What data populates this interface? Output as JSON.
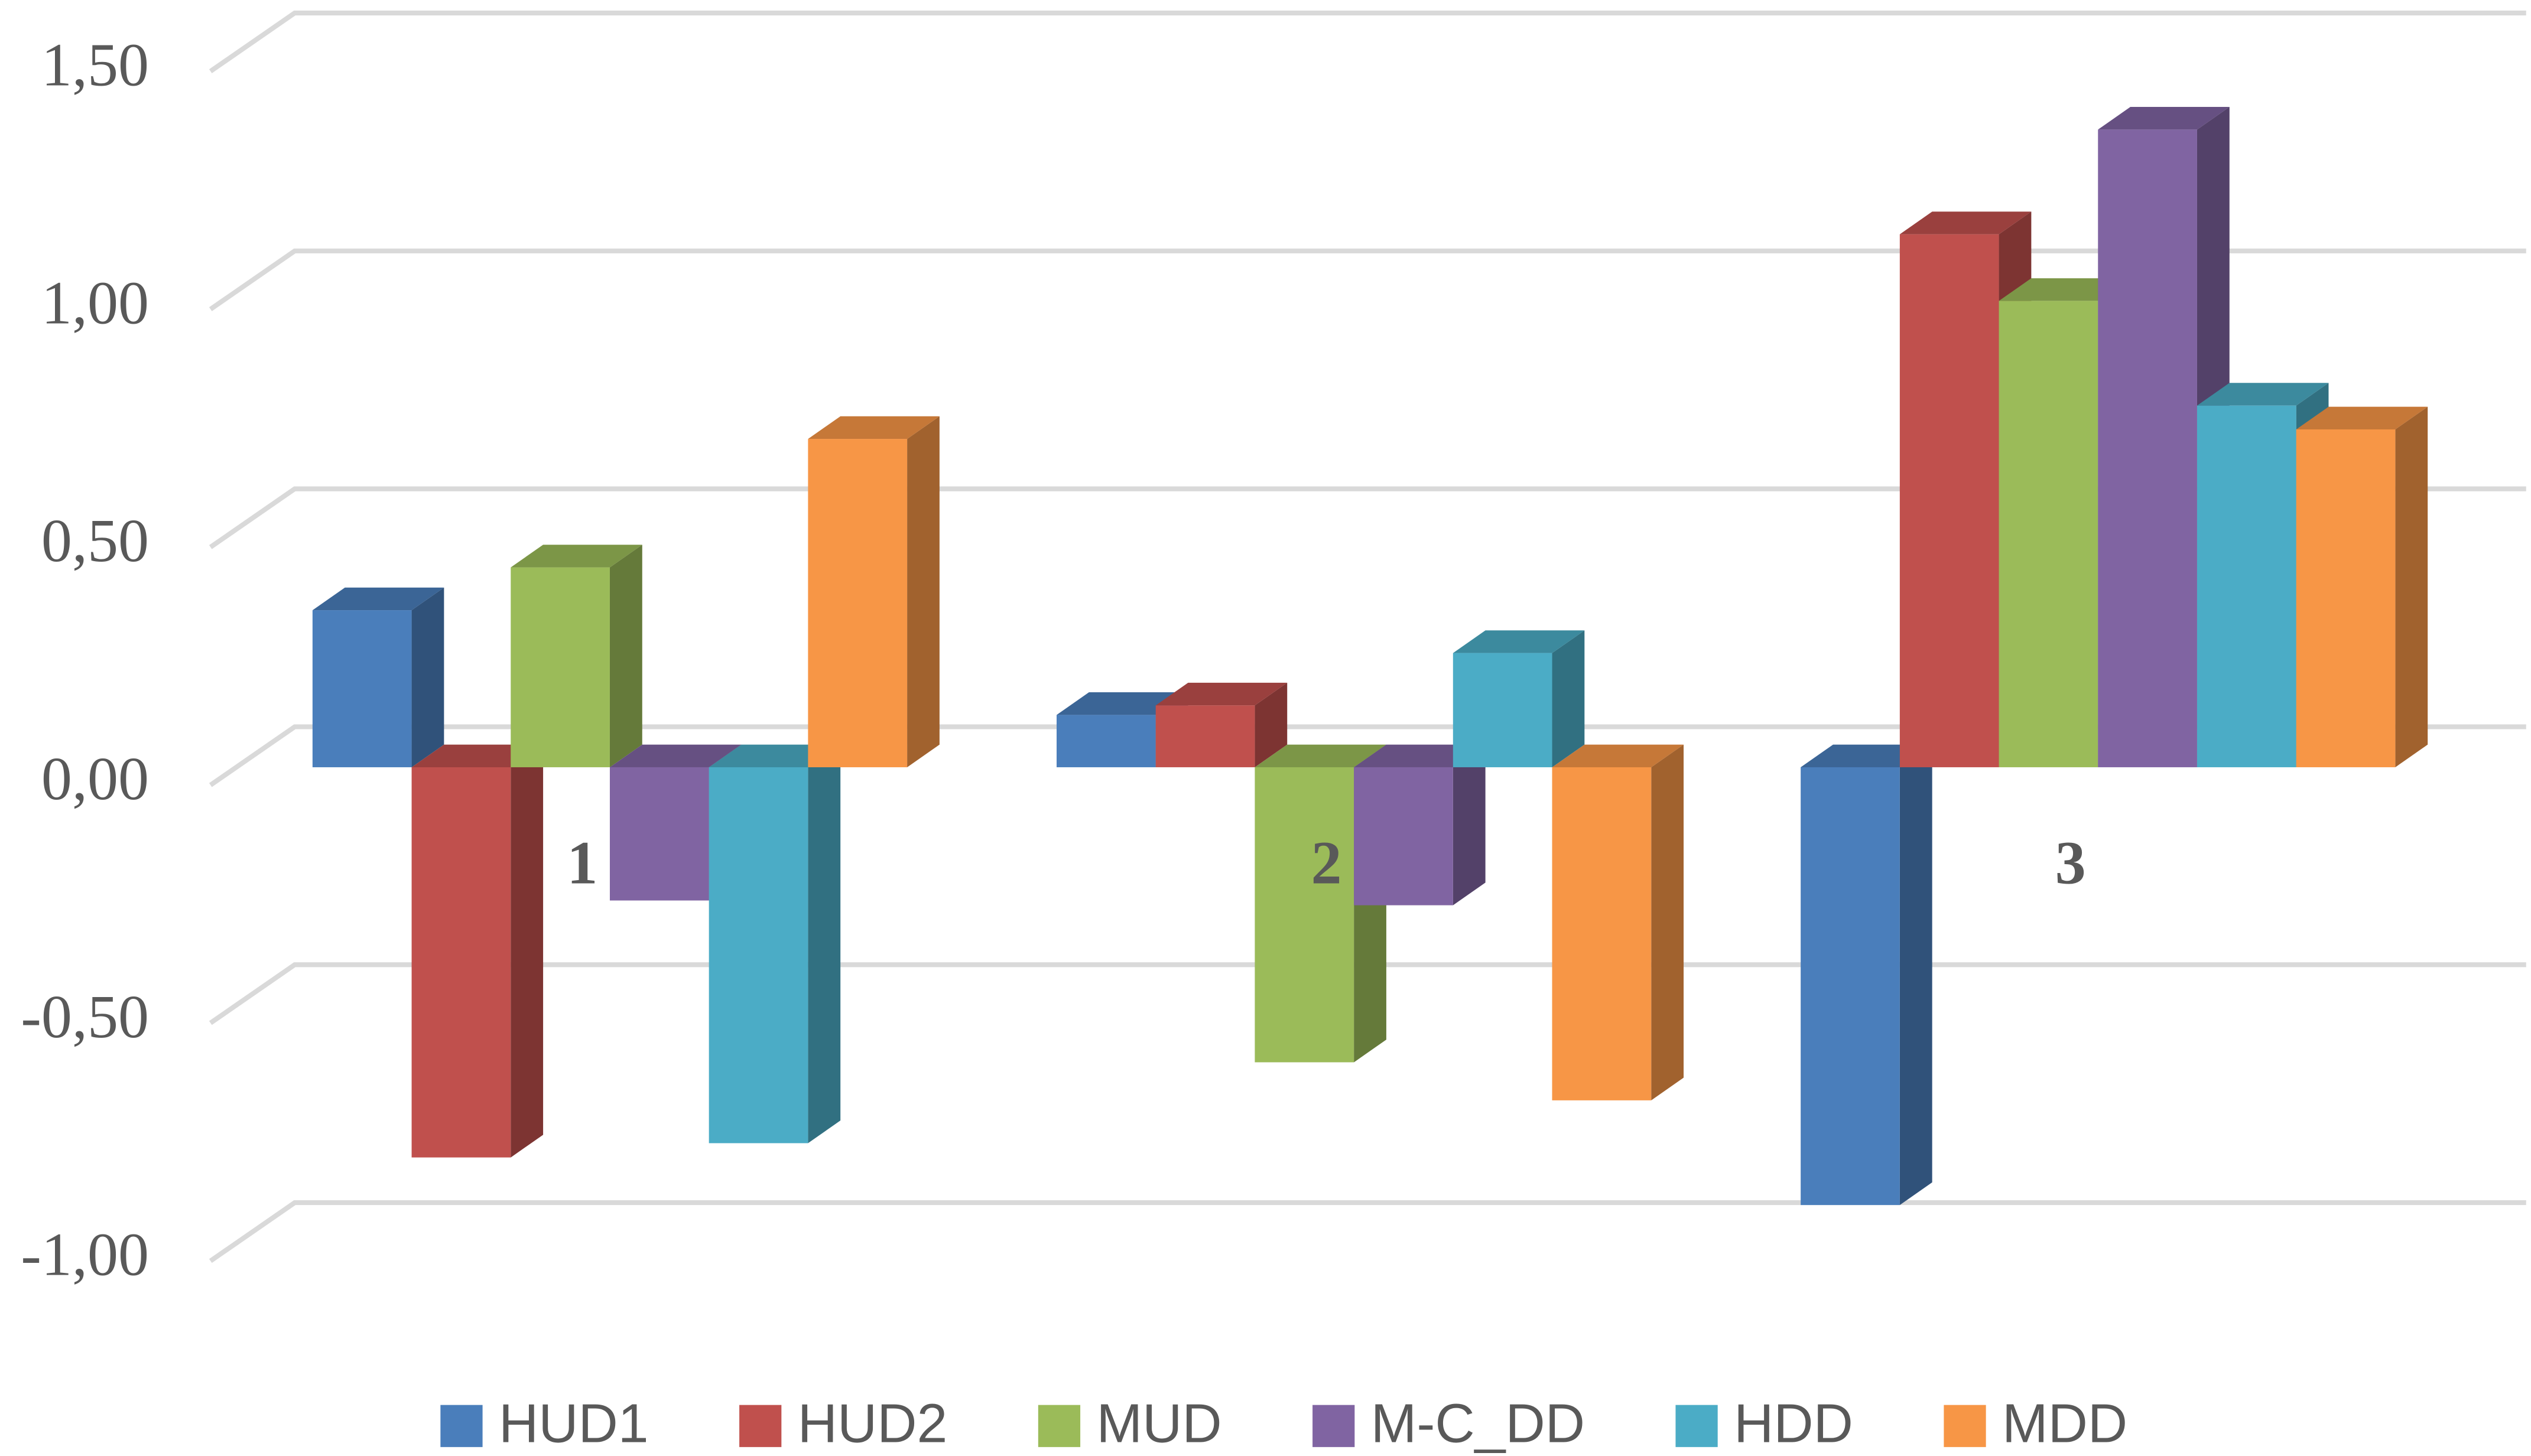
{
  "chart_data": {
    "type": "bar3d",
    "categories": [
      "1",
      "2",
      "3"
    ],
    "series": [
      {
        "name": "HUD1",
        "color": "#4a7ebb",
        "values": [
          0.33,
          0.11,
          -0.92
        ]
      },
      {
        "name": "HUD2",
        "color": "#c0504d",
        "values": [
          -0.82,
          0.13,
          1.12
        ]
      },
      {
        "name": "MUD",
        "color": "#9bbb59",
        "values": [
          0.42,
          -0.62,
          0.98
        ]
      },
      {
        "name": "M-C_DD",
        "color": "#8064a2",
        "values": [
          -0.28,
          -0.29,
          1.34
        ]
      },
      {
        "name": "HDD",
        "color": "#4bacc6",
        "values": [
          -0.79,
          0.24,
          0.76
        ]
      },
      {
        "name": "MDD",
        "color": "#f79646",
        "values": [
          0.69,
          -0.7,
          0.71
        ]
      }
    ],
    "ylim": [
      -1,
      1.5
    ],
    "yticks": [
      {
        "value": -1,
        "label": "-1,00"
      },
      {
        "value": -0.5,
        "label": "-0,50"
      },
      {
        "value": 0,
        "label": "0,00"
      },
      {
        "value": 0.5,
        "label": "0,50"
      },
      {
        "value": 1,
        "label": "1,00"
      },
      {
        "value": 1.5,
        "label": "1,50"
      }
    ],
    "grid": true,
    "legend": "bottom"
  }
}
